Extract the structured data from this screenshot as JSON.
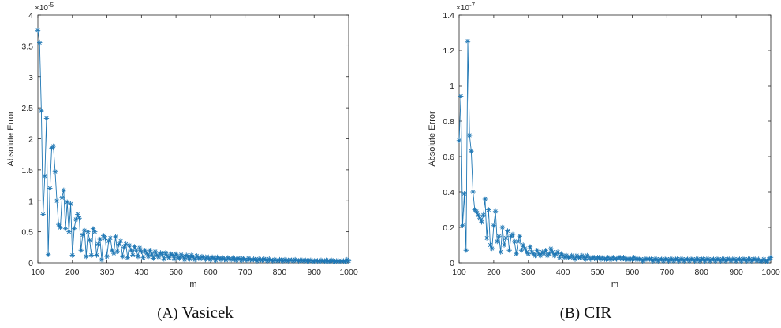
{
  "chart_data": [
    {
      "type": "line",
      "caption": {
        "prefix": "(A)",
        "title": "Vasicek"
      },
      "xlabel": "m",
      "ylabel": "Absolute Error",
      "y_exponent_base": "×10",
      "y_exponent": "-5",
      "xlim": [
        100,
        1000
      ],
      "ylim": [
        0,
        4
      ],
      "xticks": [
        100,
        200,
        300,
        400,
        500,
        600,
        700,
        800,
        900,
        1000
      ],
      "yticks": [
        0,
        0.5,
        1,
        1.5,
        2,
        2.5,
        3,
        3.5,
        4
      ],
      "ytick_labels": [
        "0",
        "0.5",
        "1",
        "1.5",
        "2",
        "2.5",
        "3",
        "3.5",
        "4"
      ],
      "marker": "asterisk",
      "color": "#1f77b4",
      "series": [
        {
          "x": [
            100,
            105,
            110,
            115,
            120,
            125,
            130,
            135,
            140,
            145,
            150,
            155,
            160,
            165,
            170,
            175,
            180,
            185,
            190,
            195,
            200,
            205,
            210,
            215,
            220,
            225,
            230,
            235,
            240,
            245,
            250,
            255,
            260,
            265,
            270,
            275,
            280,
            285,
            290,
            295,
            300,
            305,
            310,
            315,
            320,
            325,
            330,
            335,
            340,
            345,
            350,
            355,
            360,
            365,
            370,
            375,
            380,
            385,
            390,
            395,
            400,
            405,
            410,
            415,
            420,
            425,
            430,
            435,
            440,
            445,
            450,
            455,
            460,
            465,
            470,
            475,
            480,
            485,
            490,
            495,
            500,
            505,
            510,
            515,
            520,
            525,
            530,
            535,
            540,
            545,
            550,
            555,
            560,
            565,
            570,
            575,
            580,
            585,
            590,
            595,
            600,
            605,
            610,
            615,
            620,
            625,
            630,
            635,
            640,
            645,
            650,
            655,
            660,
            665,
            670,
            675,
            680,
            685,
            690,
            695,
            700,
            705,
            710,
            715,
            720,
            725,
            730,
            735,
            740,
            745,
            750,
            755,
            760,
            765,
            770,
            775,
            780,
            785,
            790,
            795,
            800,
            805,
            810,
            815,
            820,
            825,
            830,
            835,
            840,
            845,
            850,
            855,
            860,
            865,
            870,
            875,
            880,
            885,
            890,
            895,
            900,
            905,
            910,
            915,
            920,
            925,
            930,
            935,
            940,
            945,
            950,
            955,
            960,
            965,
            970,
            975,
            980,
            985,
            990,
            995,
            1000
          ],
          "y": [
            3.75,
            3.55,
            2.45,
            0.78,
            1.4,
            2.33,
            0.13,
            1.2,
            1.85,
            1.88,
            1.47,
            1.0,
            0.62,
            0.57,
            1.05,
            1.17,
            0.55,
            0.98,
            0.5,
            0.95,
            0.12,
            0.55,
            0.7,
            0.78,
            0.72,
            0.2,
            0.45,
            0.52,
            0.1,
            0.5,
            0.36,
            0.12,
            0.55,
            0.5,
            0.12,
            0.3,
            0.38,
            0.05,
            0.44,
            0.4,
            0.1,
            0.35,
            0.4,
            0.2,
            0.15,
            0.42,
            0.18,
            0.3,
            0.35,
            0.1,
            0.25,
            0.3,
            0.08,
            0.28,
            0.2,
            0.12,
            0.26,
            0.2,
            0.1,
            0.24,
            0.18,
            0.08,
            0.2,
            0.15,
            0.1,
            0.2,
            0.14,
            0.07,
            0.18,
            0.12,
            0.09,
            0.16,
            0.13,
            0.06,
            0.16,
            0.11,
            0.08,
            0.14,
            0.12,
            0.06,
            0.14,
            0.1,
            0.07,
            0.13,
            0.1,
            0.05,
            0.12,
            0.09,
            0.06,
            0.12,
            0.09,
            0.05,
            0.11,
            0.08,
            0.06,
            0.1,
            0.08,
            0.05,
            0.1,
            0.07,
            0.05,
            0.09,
            0.07,
            0.04,
            0.09,
            0.07,
            0.05,
            0.08,
            0.06,
            0.04,
            0.08,
            0.06,
            0.05,
            0.08,
            0.06,
            0.04,
            0.07,
            0.06,
            0.04,
            0.07,
            0.05,
            0.04,
            0.07,
            0.05,
            0.04,
            0.06,
            0.05,
            0.03,
            0.06,
            0.05,
            0.04,
            0.06,
            0.05,
            0.03,
            0.06,
            0.04,
            0.03,
            0.05,
            0.04,
            0.03,
            0.05,
            0.04,
            0.03,
            0.05,
            0.04,
            0.03,
            0.05,
            0.04,
            0.03,
            0.05,
            0.04,
            0.03,
            0.04,
            0.04,
            0.03,
            0.04,
            0.03,
            0.03,
            0.04,
            0.03,
            0.02,
            0.04,
            0.03,
            0.02,
            0.04,
            0.03,
            0.02,
            0.04,
            0.03,
            0.02,
            0.04,
            0.03,
            0.02,
            0.03,
            0.03,
            0.02,
            0.03,
            0.03,
            0.02,
            0.05,
            0.03
          ]
        }
      ]
    },
    {
      "type": "line",
      "caption": {
        "prefix": "(B)",
        "title": "CIR"
      },
      "xlabel": "m",
      "ylabel": "Absolute Error",
      "y_exponent_base": "×10",
      "y_exponent": "-7",
      "xlim": [
        100,
        1000
      ],
      "ylim": [
        0,
        1.4
      ],
      "xticks": [
        100,
        200,
        300,
        400,
        500,
        600,
        700,
        800,
        900,
        1000
      ],
      "yticks": [
        0,
        0.2,
        0.4,
        0.6,
        0.8,
        1,
        1.2,
        1.4
      ],
      "ytick_labels": [
        "0",
        "0.2",
        "0.4",
        "0.6",
        "0.8",
        "1",
        "1.2",
        "1.4"
      ],
      "marker": "asterisk",
      "color": "#1f77b4",
      "series": [
        {
          "x": [
            100,
            105,
            110,
            115,
            120,
            125,
            130,
            135,
            140,
            145,
            150,
            155,
            160,
            165,
            170,
            175,
            180,
            185,
            190,
            195,
            200,
            205,
            210,
            215,
            220,
            225,
            230,
            235,
            240,
            245,
            250,
            255,
            260,
            265,
            270,
            275,
            280,
            285,
            290,
            295,
            300,
            305,
            310,
            315,
            320,
            325,
            330,
            335,
            340,
            345,
            350,
            355,
            360,
            365,
            370,
            375,
            380,
            385,
            390,
            395,
            400,
            405,
            410,
            415,
            420,
            425,
            430,
            435,
            440,
            445,
            450,
            455,
            460,
            465,
            470,
            475,
            480,
            485,
            490,
            495,
            500,
            505,
            510,
            515,
            520,
            525,
            530,
            535,
            540,
            545,
            550,
            555,
            560,
            565,
            570,
            575,
            580,
            585,
            590,
            595,
            600,
            605,
            610,
            615,
            620,
            625,
            630,
            635,
            640,
            645,
            650,
            655,
            660,
            665,
            670,
            675,
            680,
            685,
            690,
            695,
            700,
            705,
            710,
            715,
            720,
            725,
            730,
            735,
            740,
            745,
            750,
            755,
            760,
            765,
            770,
            775,
            780,
            785,
            790,
            795,
            800,
            805,
            810,
            815,
            820,
            825,
            830,
            835,
            840,
            845,
            850,
            855,
            860,
            865,
            870,
            875,
            880,
            885,
            890,
            895,
            900,
            905,
            910,
            915,
            920,
            925,
            930,
            935,
            940,
            945,
            950,
            955,
            960,
            965,
            970,
            975,
            980,
            985,
            990,
            995,
            1000
          ],
          "y": [
            0.69,
            0.94,
            0.21,
            0.39,
            0.07,
            1.25,
            0.72,
            0.63,
            0.4,
            0.3,
            0.29,
            0.27,
            0.25,
            0.23,
            0.27,
            0.36,
            0.14,
            0.3,
            0.1,
            0.08,
            0.21,
            0.29,
            0.12,
            0.15,
            0.06,
            0.2,
            0.1,
            0.14,
            0.18,
            0.07,
            0.15,
            0.16,
            0.12,
            0.05,
            0.12,
            0.15,
            0.07,
            0.1,
            0.08,
            0.06,
            0.05,
            0.09,
            0.06,
            0.05,
            0.04,
            0.07,
            0.05,
            0.04,
            0.06,
            0.05,
            0.07,
            0.04,
            0.05,
            0.08,
            0.06,
            0.04,
            0.05,
            0.06,
            0.03,
            0.05,
            0.04,
            0.03,
            0.04,
            0.03,
            0.03,
            0.04,
            0.03,
            0.02,
            0.04,
            0.03,
            0.03,
            0.04,
            0.03,
            0.02,
            0.04,
            0.03,
            0.02,
            0.03,
            0.03,
            0.02,
            0.03,
            0.03,
            0.02,
            0.03,
            0.02,
            0.02,
            0.03,
            0.02,
            0.02,
            0.03,
            0.02,
            0.02,
            0.03,
            0.03,
            0.02,
            0.03,
            0.02,
            0.02,
            0.02,
            0.02,
            0.02,
            0.03,
            0.02,
            0.02,
            0.02,
            0.02,
            0.01,
            0.02,
            0.02,
            0.02,
            0.02,
            0.02,
            0.01,
            0.02,
            0.02,
            0.01,
            0.02,
            0.02,
            0.01,
            0.02,
            0.02,
            0.01,
            0.02,
            0.02,
            0.01,
            0.02,
            0.02,
            0.01,
            0.02,
            0.02,
            0.01,
            0.02,
            0.02,
            0.01,
            0.02,
            0.02,
            0.01,
            0.02,
            0.02,
            0.01,
            0.02,
            0.02,
            0.01,
            0.02,
            0.02,
            0.01,
            0.02,
            0.02,
            0.01,
            0.02,
            0.02,
            0.01,
            0.02,
            0.02,
            0.01,
            0.02,
            0.02,
            0.01,
            0.02,
            0.02,
            0.01,
            0.02,
            0.02,
            0.01,
            0.02,
            0.02,
            0.01,
            0.02,
            0.02,
            0.01,
            0.02,
            0.02,
            0.01,
            0.02,
            0.01,
            0.01,
            0.02,
            0.01,
            0.01,
            0.02,
            0.03
          ]
        }
      ]
    }
  ]
}
